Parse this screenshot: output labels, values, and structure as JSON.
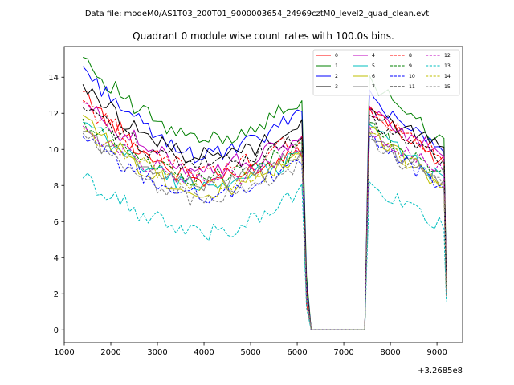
{
  "suptitle": "Data file: modeM0/AS1T03_200T01_9000003654_24969cztM0_level2_quad_clean.evt",
  "chart_data": {
    "type": "line",
    "title": "Quadrant 0 module wise count rates with 100.0s bins.",
    "xlabel": "",
    "ylabel": "",
    "x_offset_text": "+3.2685e8",
    "xlim": [
      1000,
      9550
    ],
    "ylim": [
      -0.7,
      15.7
    ],
    "xticks": [
      1000,
      2000,
      3000,
      4000,
      5000,
      6000,
      7000,
      8000,
      9000
    ],
    "xtick_labels": [
      "1000",
      "2000",
      "3000",
      "4000",
      "5000",
      "6000",
      "7000",
      "8000",
      "9000"
    ],
    "yticks": [
      0,
      2,
      4,
      6,
      8,
      10,
      12,
      14
    ],
    "ytick_labels": [
      "0",
      "2",
      "4",
      "6",
      "8",
      "10",
      "12",
      "14"
    ],
    "grid": false,
    "legend_position": "top-right",
    "series": [
      {
        "name": "0",
        "color": "#ff0000",
        "dash": "solid",
        "first": 13.2,
        "min": 8.3,
        "last": 10.2,
        "drop": 1.4,
        "seg2_start": 12.4,
        "seg2_end": 9.3,
        "final": 2.1,
        "amp": 0.45
      },
      {
        "name": "1",
        "color": "#008000",
        "dash": "solid",
        "first": 15.1,
        "min": 10.5,
        "last": 12.9,
        "drop": 3.0,
        "seg2_start": 14.1,
        "seg2_end": 10.4,
        "final": 2.9,
        "amp": 0.45
      },
      {
        "name": "2",
        "color": "#0000ff",
        "dash": "solid",
        "first": 14.6,
        "min": 9.7,
        "last": 12.2,
        "drop": 2.6,
        "seg2_start": 13.3,
        "seg2_end": 9.9,
        "final": 2.6,
        "amp": 0.45
      },
      {
        "name": "3",
        "color": "#000000",
        "dash": "solid",
        "first": 13.6,
        "min": 9.6,
        "last": 11.4,
        "drop": 2.4,
        "seg2_start": 12.3,
        "seg2_end": 10.1,
        "final": 2.6,
        "amp": 0.45
      },
      {
        "name": "4",
        "color": "#bf00bf",
        "dash": "solid",
        "first": 12.6,
        "min": 9.0,
        "last": 10.7,
        "drop": 2.2,
        "seg2_start": 12.4,
        "seg2_end": 9.7,
        "final": 2.4,
        "amp": 0.45
      },
      {
        "name": "5",
        "color": "#00bfbf",
        "dash": "solid",
        "first": 11.5,
        "min": 8.0,
        "last": 9.8,
        "drop": 1.8,
        "seg2_start": 11.4,
        "seg2_end": 8.3,
        "final": 2.0,
        "amp": 0.45
      },
      {
        "name": "6",
        "color": "#bfbf00",
        "dash": "solid",
        "first": 11.9,
        "min": 7.6,
        "last": 9.8,
        "drop": 2.0,
        "seg2_start": 11.2,
        "seg2_end": 8.0,
        "final": 2.2,
        "amp": 0.45
      },
      {
        "name": "7",
        "color": "#808080",
        "dash": "solid",
        "first": 11.0,
        "min": 8.2,
        "last": 9.7,
        "drop": 1.7,
        "seg2_start": 11.0,
        "seg2_end": 8.2,
        "final": 2.0,
        "amp": 0.45
      },
      {
        "name": "8",
        "color": "#ff0000",
        "dash": "dashed",
        "first": 12.7,
        "min": 8.8,
        "last": 10.9,
        "drop": 2.3,
        "seg2_start": 12.3,
        "seg2_end": 9.6,
        "final": 2.3,
        "amp": 0.45
      },
      {
        "name": "9",
        "color": "#008000",
        "dash": "dashed",
        "first": 11.7,
        "min": 8.5,
        "last": 10.1,
        "drop": 2.1,
        "seg2_start": 11.5,
        "seg2_end": 8.8,
        "final": 2.1,
        "amp": 0.45
      },
      {
        "name": "10",
        "color": "#0000ff",
        "dash": "dashed",
        "first": 10.7,
        "min": 7.4,
        "last": 9.4,
        "drop": 1.9,
        "seg2_start": 10.7,
        "seg2_end": 8.0,
        "final": 1.9,
        "amp": 0.45
      },
      {
        "name": "11",
        "color": "#000000",
        "dash": "dashed",
        "first": 12.3,
        "min": 9.2,
        "last": 10.6,
        "drop": 2.2,
        "seg2_start": 11.9,
        "seg2_end": 9.3,
        "final": 2.3,
        "amp": 0.45
      },
      {
        "name": "12",
        "color": "#bf00bf",
        "dash": "dashed",
        "first": 11.3,
        "min": 8.3,
        "last": 10.0,
        "drop": 2.0,
        "seg2_start": 11.3,
        "seg2_end": 8.7,
        "final": 2.1,
        "amp": 0.45
      },
      {
        "name": "13",
        "color": "#00bfbf",
        "dash": "dashed",
        "first": 8.4,
        "min": 5.4,
        "last": 7.8,
        "drop": 1.2,
        "seg2_start": 8.2,
        "seg2_end": 5.8,
        "final": 1.6,
        "amp": 0.45
      },
      {
        "name": "14",
        "color": "#bfbf00",
        "dash": "dashed",
        "first": 11.2,
        "min": 8.0,
        "last": 9.6,
        "drop": 1.9,
        "seg2_start": 10.9,
        "seg2_end": 8.2,
        "final": 1.9,
        "amp": 0.45
      },
      {
        "name": "15",
        "color": "#808080",
        "dash": "dashed",
        "first": 10.9,
        "min": 7.3,
        "last": 9.3,
        "drop": 1.8,
        "seg2_start": 10.6,
        "seg2_end": 8.1,
        "final": 1.8,
        "amp": 0.45
      }
    ],
    "time_bins": {
      "segment1_start": 1400,
      "segment1_end": 6100,
      "step": 100,
      "gap_rise": 6200,
      "gap_start": 6300,
      "gap_end": 7450,
      "segment2_start": 7550,
      "segment2_end": 9100,
      "last_bin": 9200
    }
  }
}
